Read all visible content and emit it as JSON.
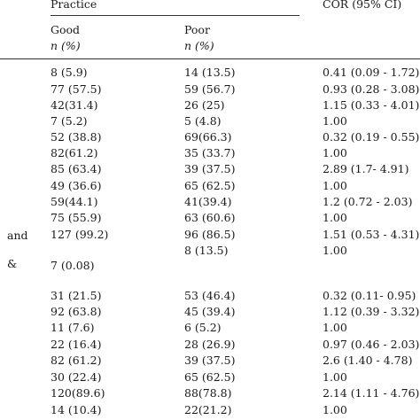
{
  "header": {
    "practice": "Practice",
    "cor": "COR (95% CI)",
    "good": "Good",
    "poor": "Poor",
    "good_unit": "n (%)",
    "poor_unit": "n (%)"
  },
  "row_stubs": {
    "and": "and",
    "amp": "&"
  },
  "rows": [
    {
      "good": "8 (5.9)",
      "poor": "14 (13.5)",
      "cor": "0.41 (0.09 - 1.72)"
    },
    {
      "good": "77 (57.5)",
      "poor": "59 (56.7)",
      "cor": "0.93 (0.28 - 3.08)"
    },
    {
      "good": "42(31.4)",
      "poor": "26 (25)",
      "cor": "1.15 (0.33 - 4.01)"
    },
    {
      "good": "7 (5.2)",
      "poor": "5 (4.8)",
      "cor": "1.00"
    },
    {
      "good": "52 (38.8)",
      "poor": "69(66.3)",
      "cor": "0.32 (0.19 - 0.55)"
    },
    {
      "good": "82(61.2)",
      "poor": "35 (33.7)",
      "cor": "1.00"
    },
    {
      "good": "85 (63.4)",
      "poor": "39 (37.5)",
      "cor": "2.89 (1.7- 4.91)"
    },
    {
      "good": "49 (36.6)",
      "poor": "65 (62.5)",
      "cor": "1.00"
    },
    {
      "good": "59(44.1)",
      "poor": "41(39.4)",
      "cor": "1.2 (0.72 - 2.03)"
    },
    {
      "good": "75 (55.9)",
      "poor": "63 (60.6)",
      "cor": "1.00"
    },
    {
      "good": "127 (99.2)",
      "poor": "96 (86.5)",
      "cor": "1.51 (0.53 - 4.31)"
    },
    {
      "good": "",
      "poor": "8 (13.5)",
      "cor": "1.00"
    },
    {
      "good": "7 (0.08)",
      "poor": "",
      "cor": ""
    },
    {
      "good": "31 (21.5)",
      "poor": "53 (46.4)",
      "cor": "0.32 (0.11- 0.95)"
    },
    {
      "good": "92 (63.8)",
      "poor": "45 (39.4)",
      "cor": "1.12 (0.39 - 3.32)"
    },
    {
      "good": "11 (7.6)",
      "poor": "6 (5.2)",
      "cor": "1.00"
    },
    {
      "good": "22 (16.4)",
      "poor": "28 (26.9)",
      "cor": "0.97 (0.46 - 2.03)"
    },
    {
      "good": "82 (61.2)",
      "poor": "39 (37.5)",
      "cor": "2.6 (1.40 - 4.78)"
    },
    {
      "good": "30 (22.4)",
      "poor": "65 (62.5)",
      "cor": "1.00"
    },
    {
      "good": "120(89.6)",
      "poor": "88(78.8)",
      "cor": "2.14 (1.11 - 4.76)"
    },
    {
      "good": "14 (10.4)",
      "poor": "22(21.2)",
      "cor": "1.00"
    }
  ]
}
